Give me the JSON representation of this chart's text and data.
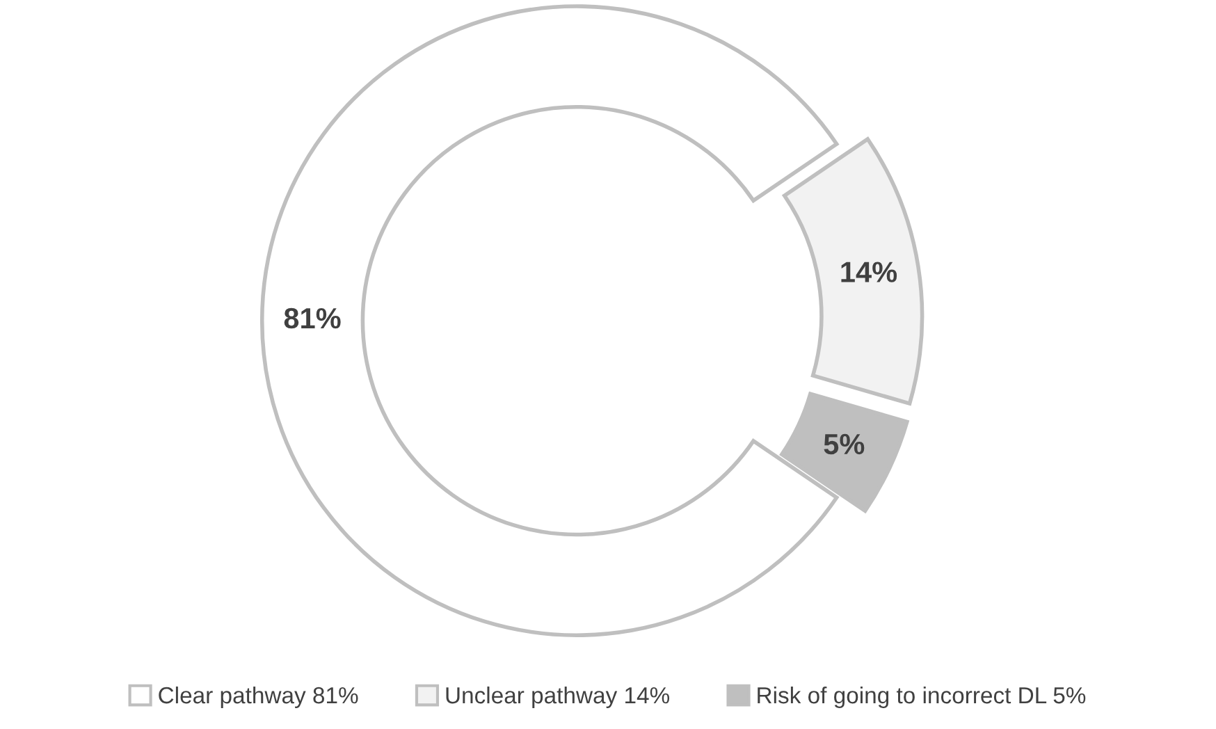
{
  "chart_data": {
    "type": "donut",
    "categories": [
      "Clear pathway 81%",
      "Unclear pathway 14%",
      "Risk of going to incorrect DL 5%"
    ],
    "values": [
      81,
      14,
      5
    ],
    "colors": [
      "#ffffff",
      "#f2f2f2",
      "#bfbfbf"
    ],
    "value_labels": [
      "81%",
      "14%",
      "5%"
    ],
    "legend": "bottom"
  }
}
